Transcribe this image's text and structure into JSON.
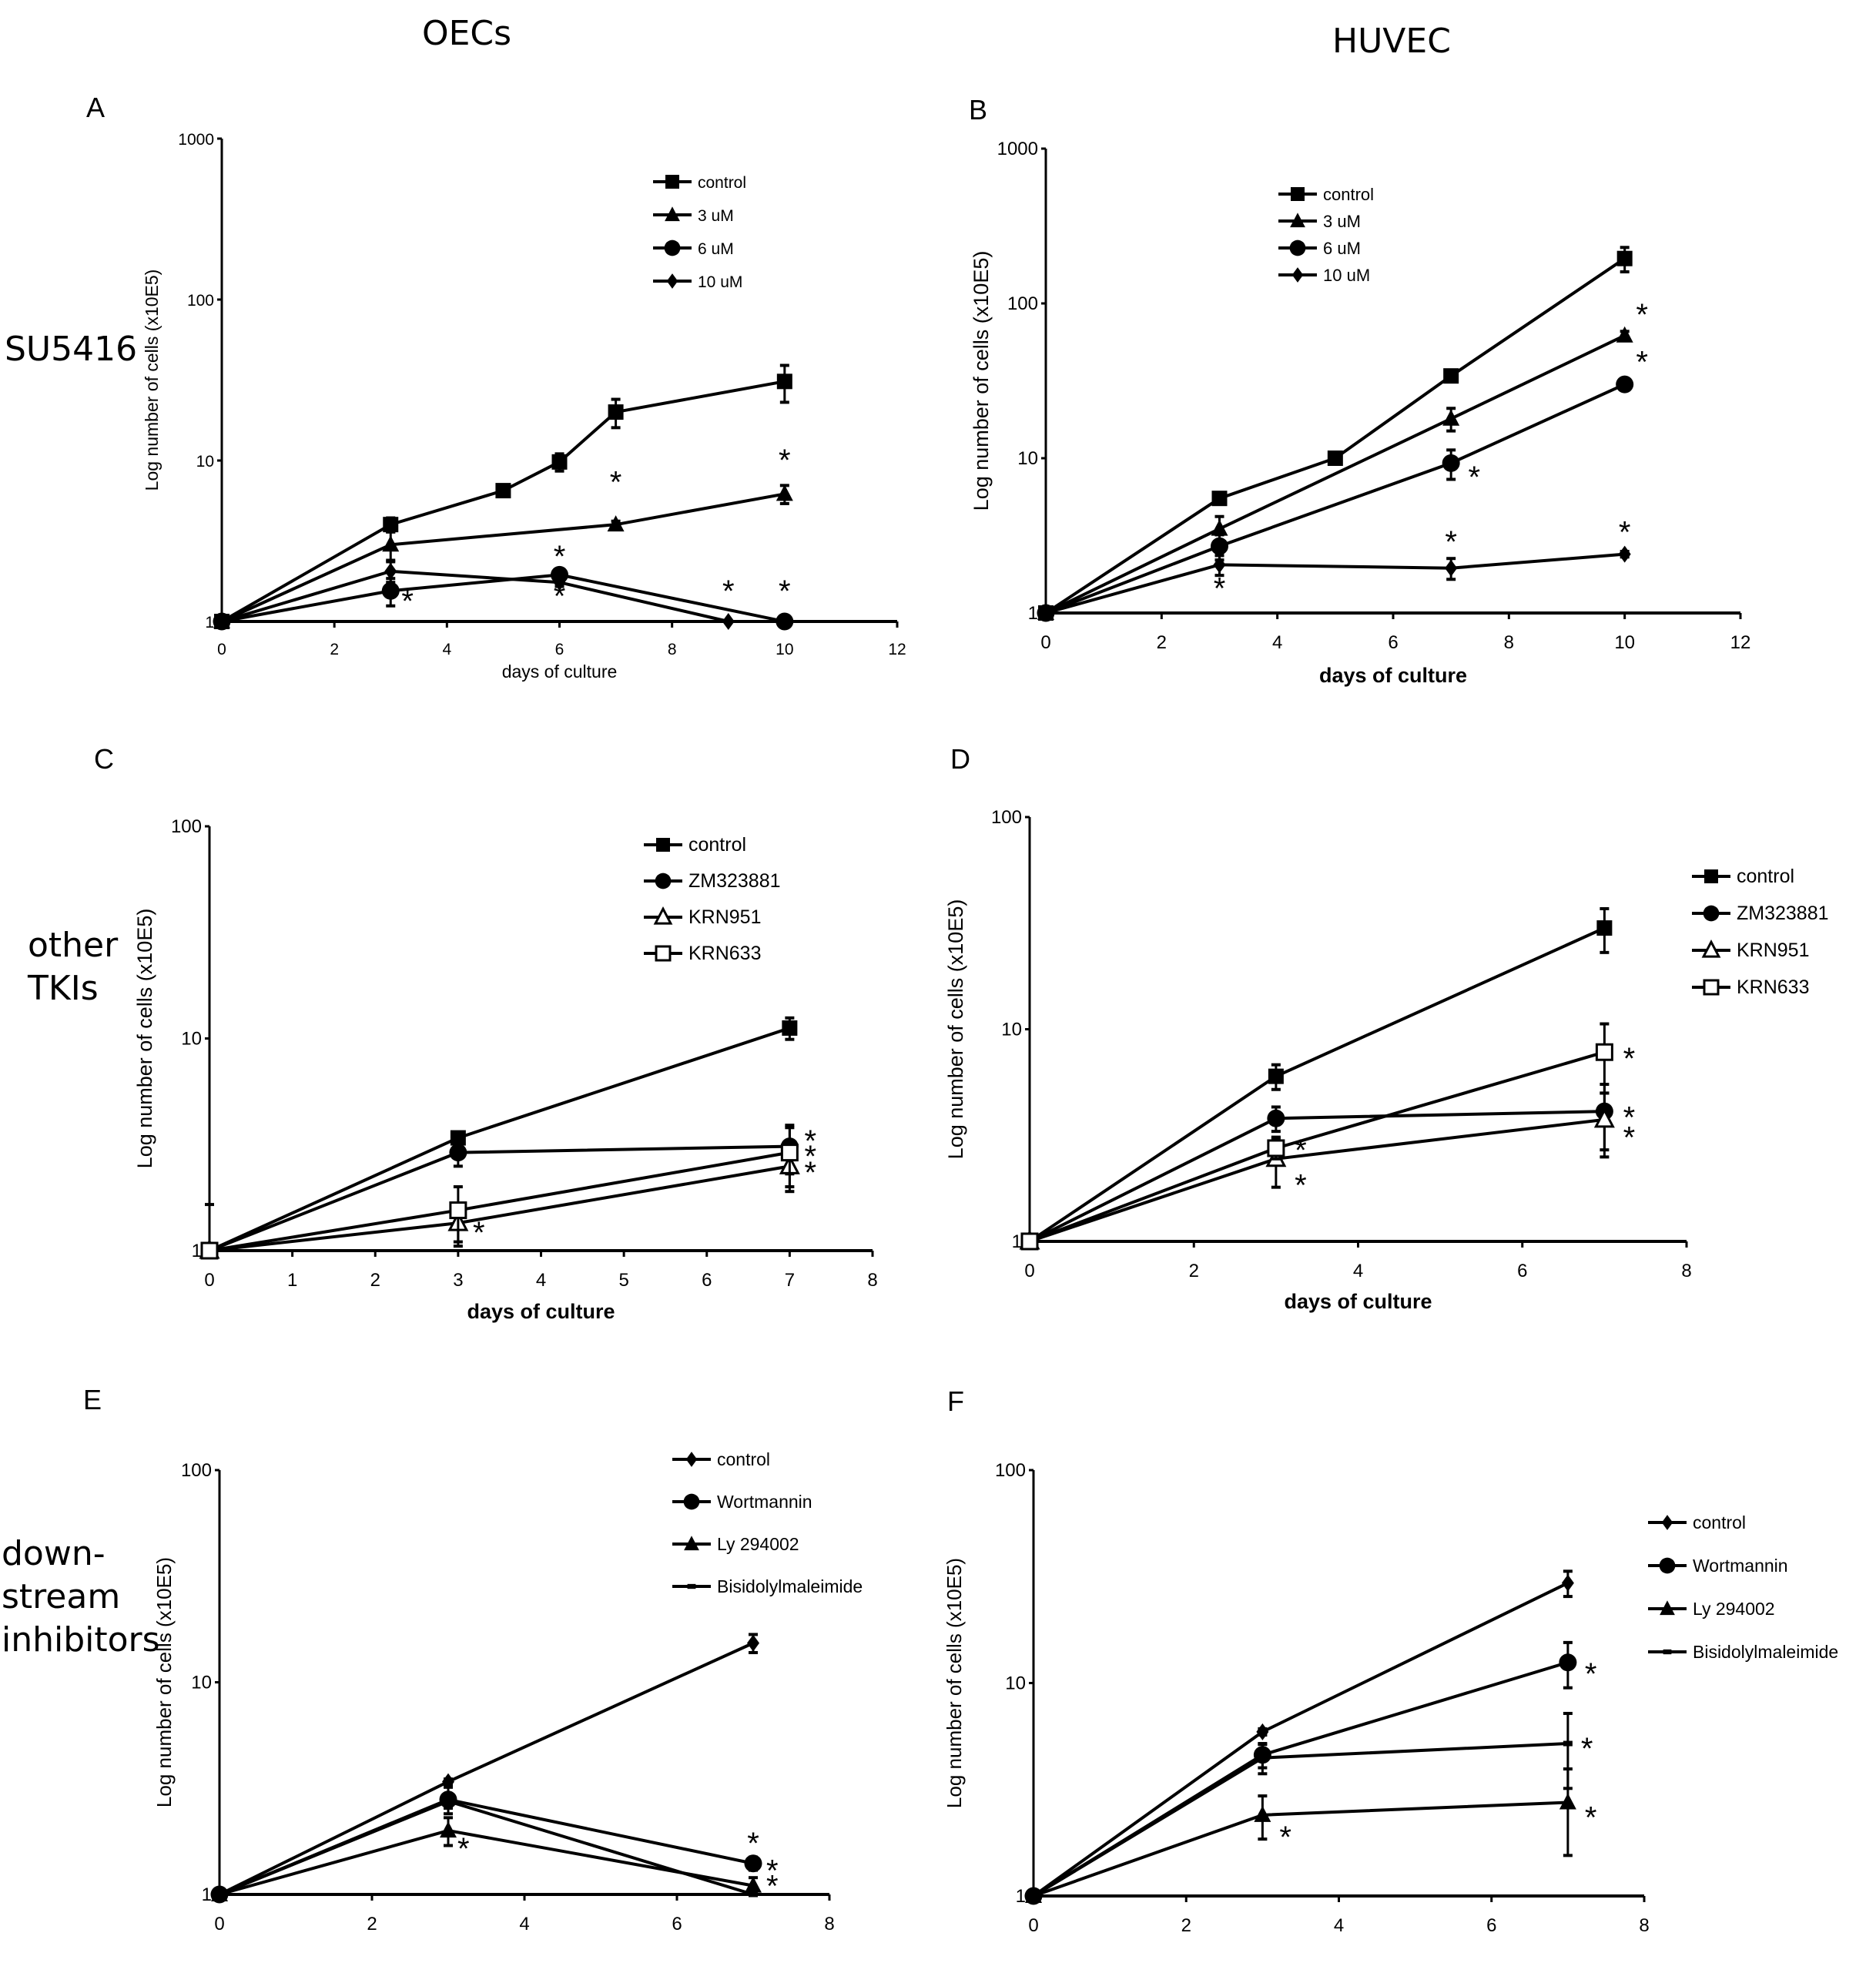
{
  "column_titles": [
    "OECs",
    "HUVEC"
  ],
  "row_titles": [
    "SU5416",
    "other\nTKIs",
    "down-\nstream\ninhibitors"
  ],
  "chart_data": [
    {
      "panel": "A",
      "type": "line",
      "yscale": "log",
      "xlabel": "days of culture",
      "ylabel": "Log number of cells (x10E5)",
      "xlim": [
        0,
        12
      ],
      "xticks": [
        0,
        2,
        4,
        6,
        8,
        10,
        12
      ],
      "ylim": [
        1,
        1000
      ],
      "yticks": [
        1,
        10,
        100,
        1000
      ],
      "legend": "top-right",
      "series": [
        {
          "name": "control",
          "marker": "square",
          "x": [
            0,
            3,
            5,
            6,
            7,
            10
          ],
          "y": [
            1,
            4,
            6.5,
            9.8,
            20,
            31
          ],
          "err": [
            0,
            0.4,
            0.3,
            1.2,
            4,
            8
          ]
        },
        {
          "name": "3 uM",
          "marker": "triangle",
          "x": [
            0,
            3,
            7,
            10
          ],
          "y": [
            1,
            3,
            4,
            6.2
          ],
          "err": [
            0,
            0.6,
            0.2,
            0.8
          ]
        },
        {
          "name": "6 uM",
          "marker": "circle",
          "x": [
            0,
            3,
            6,
            10
          ],
          "y": [
            1,
            1.55,
            1.95,
            1
          ],
          "err": [
            0,
            0.3,
            0.1,
            0
          ]
        },
        {
          "name": "10 uM",
          "marker": "diamond",
          "x": [
            0,
            3,
            6,
            9
          ],
          "y": [
            1,
            2.05,
            1.75,
            1
          ],
          "err": [
            0,
            0.3,
            0.1,
            0
          ]
        }
      ],
      "annotations": [
        {
          "text": "*",
          "x": 3.3,
          "y": 1.35
        },
        {
          "text": "*",
          "x": 6,
          "y": 2.55
        },
        {
          "text": "*",
          "x": 6,
          "y": 1.45
        },
        {
          "text": "*",
          "x": 7,
          "y": 7.4
        },
        {
          "text": "*",
          "x": 10,
          "y": 10.1
        },
        {
          "text": "*",
          "x": 9,
          "y": 1.55
        },
        {
          "text": "*",
          "x": 10,
          "y": 1.55
        }
      ]
    },
    {
      "panel": "B",
      "type": "line",
      "yscale": "log",
      "xlabel": "days of culture",
      "ylabel": "Log number of cells (x10E5)",
      "xlim": [
        0,
        12
      ],
      "xticks": [
        0,
        2,
        4,
        6,
        8,
        10,
        12
      ],
      "ylim": [
        1,
        1000
      ],
      "yticks": [
        1,
        10,
        100,
        1000
      ],
      "legend": "top-center",
      "series": [
        {
          "name": "control",
          "marker": "square",
          "x": [
            0,
            3,
            5,
            7,
            10
          ],
          "y": [
            1,
            5.5,
            10,
            34,
            195
          ],
          "err": [
            0,
            0.3,
            0.3,
            1.5,
            35
          ]
        },
        {
          "name": "3 uM",
          "marker": "triangle",
          "x": [
            0,
            3,
            7,
            10
          ],
          "y": [
            1,
            3.5,
            18,
            62
          ],
          "err": [
            0,
            0.7,
            3,
            4
          ]
        },
        {
          "name": "6 uM",
          "marker": "circle",
          "x": [
            0,
            3,
            7,
            10
          ],
          "y": [
            1,
            2.7,
            9.3,
            30
          ],
          "err": [
            0,
            0.5,
            2,
            1
          ]
        },
        {
          "name": "10 uM",
          "marker": "diamond",
          "x": [
            0,
            3,
            7,
            10
          ],
          "y": [
            1,
            2.05,
            1.95,
            2.4
          ],
          "err": [
            0,
            0.3,
            0.3,
            0.1
          ]
        }
      ],
      "annotations": [
        {
          "text": "*",
          "x": 3,
          "y": 1.45
        },
        {
          "text": "*",
          "x": 7,
          "y": 2.9
        },
        {
          "text": "*",
          "x": 10,
          "y": 3.35
        },
        {
          "text": "*",
          "x": 7.4,
          "y": 7.6
        },
        {
          "text": "*",
          "x": 10.3,
          "y": 85
        },
        {
          "text": "*",
          "x": 10.3,
          "y": 42
        }
      ]
    },
    {
      "panel": "C",
      "type": "line",
      "yscale": "log",
      "xlabel": "days of culture",
      "ylabel": "Log number of cells (x10E5)",
      "xlim": [
        0,
        8
      ],
      "xticks": [
        0,
        1,
        2,
        3,
        4,
        5,
        6,
        7,
        8
      ],
      "ylim": [
        1,
        100
      ],
      "yticks": [
        1,
        10,
        100
      ],
      "legend": "top-right",
      "series": [
        {
          "name": "control",
          "marker": "square",
          "x": [
            0,
            3,
            7
          ],
          "y": [
            1,
            3.4,
            11.2
          ],
          "err": [
            0.65,
            0.15,
            1.3
          ]
        },
        {
          "name": "ZM323881",
          "marker": "circle",
          "x": [
            0,
            3,
            7
          ],
          "y": [
            1,
            2.9,
            3.1
          ],
          "err": [
            0,
            0.4,
            0.8
          ]
        },
        {
          "name": "KRN951",
          "marker": "triangle-open",
          "x": [
            0,
            3,
            7
          ],
          "y": [
            1,
            1.35,
            2.5
          ],
          "err": [
            0,
            0.3,
            0.6
          ]
        },
        {
          "name": "KRN633",
          "marker": "square-open",
          "x": [
            0,
            3,
            7
          ],
          "y": [
            1,
            1.55,
            2.9
          ],
          "err": [
            0,
            0.45,
            0.9
          ]
        }
      ],
      "annotations": [
        {
          "text": "*",
          "x": 3.25,
          "y": 1.22
        },
        {
          "text": "*",
          "x": 7.25,
          "y": 3.3
        },
        {
          "text": "*",
          "x": 7.25,
          "y": 2.8
        },
        {
          "text": "*",
          "x": 7.25,
          "y": 2.35
        }
      ]
    },
    {
      "panel": "D",
      "type": "line",
      "yscale": "log",
      "xlabel": "days of culture",
      "ylabel": "Log number of cells (x10E5)",
      "xlim": [
        0,
        8
      ],
      "xticks": [
        0,
        2,
        4,
        6,
        8
      ],
      "ylim": [
        1,
        100
      ],
      "yticks": [
        1,
        10,
        100
      ],
      "legend": "right",
      "series": [
        {
          "name": "control",
          "marker": "square",
          "x": [
            0,
            3,
            7
          ],
          "y": [
            1,
            6,
            30
          ],
          "err": [
            0,
            0.8,
            7
          ]
        },
        {
          "name": "ZM323881",
          "marker": "circle",
          "x": [
            0,
            3,
            7
          ],
          "y": [
            1,
            3.8,
            4.1
          ],
          "err": [
            0,
            0.5,
            1.4
          ]
        },
        {
          "name": "KRN951",
          "marker": "triangle-open",
          "x": [
            0,
            3,
            7
          ],
          "y": [
            1,
            2.45,
            3.75
          ],
          "err": [
            0,
            0.65,
            1.25
          ]
        },
        {
          "name": "KRN633",
          "marker": "square-open",
          "x": [
            0,
            3,
            7
          ],
          "y": [
            1,
            2.75,
            7.8
          ],
          "err": [
            0,
            0.3,
            2.8
          ]
        }
      ],
      "annotations": [
        {
          "text": "*",
          "x": 3.3,
          "y": 2.7
        },
        {
          "text": "*",
          "x": 3.3,
          "y": 1.85
        },
        {
          "text": "*",
          "x": 7.3,
          "y": 7.3
        },
        {
          "text": "*",
          "x": 7.3,
          "y": 3.85
        },
        {
          "text": "*",
          "x": 7.3,
          "y": 3.1
        }
      ]
    },
    {
      "panel": "E",
      "type": "line",
      "yscale": "log",
      "xlabel": "",
      "ylabel": "Log number of cells (x10E5)",
      "xlim": [
        0,
        8
      ],
      "xticks": [
        0,
        2,
        4,
        6,
        8
      ],
      "ylim": [
        1,
        100
      ],
      "yticks": [
        1,
        10,
        100
      ],
      "legend": "top-right",
      "series": [
        {
          "name": "control",
          "marker": "diamond",
          "x": [
            0,
            3,
            7
          ],
          "y": [
            1,
            3.4,
            15.3
          ],
          "err": [
            0,
            0.1,
            1.5
          ]
        },
        {
          "name": "Wortmannin",
          "marker": "circle",
          "x": [
            0,
            3,
            7
          ],
          "y": [
            1,
            2.8,
            1.4
          ],
          "err": [
            0,
            0.4,
            0.1
          ]
        },
        {
          "name": "Ly 294002",
          "marker": "triangle",
          "x": [
            0,
            3,
            7
          ],
          "y": [
            1,
            2.0,
            1.1
          ],
          "err": [
            0,
            0.3,
            0.1
          ]
        },
        {
          "name": "Bisidolylmaleimide",
          "marker": "dash",
          "x": [
            0,
            3,
            7
          ],
          "y": [
            1,
            2.75,
            1.0
          ],
          "err": [
            0,
            0.2,
            0
          ]
        }
      ],
      "annotations": [
        {
          "text": "*",
          "x": 3.2,
          "y": 1.65
        },
        {
          "text": "*",
          "x": 7,
          "y": 1.75
        },
        {
          "text": "*",
          "x": 7.25,
          "y": 1.3
        },
        {
          "text": "*",
          "x": 7.25,
          "y": 1.1
        }
      ]
    },
    {
      "panel": "F",
      "type": "line",
      "yscale": "log",
      "xlabel": "",
      "ylabel": "Log number of cells (x10E5)",
      "xlim": [
        0,
        8
      ],
      "xticks": [
        0,
        2,
        4,
        6,
        8
      ],
      "ylim": [
        1,
        100
      ],
      "yticks": [
        1,
        10,
        100
      ],
      "legend": "right",
      "series": [
        {
          "name": "control",
          "marker": "diamond",
          "x": [
            0,
            3,
            7
          ],
          "y": [
            1,
            5.9,
            29.5
          ],
          "err": [
            0,
            0.2,
            4
          ]
        },
        {
          "name": "Wortmannin",
          "marker": "circle",
          "x": [
            0,
            3,
            7
          ],
          "y": [
            1,
            4.6,
            12.5
          ],
          "err": [
            0,
            0.6,
            3
          ]
        },
        {
          "name": "Ly 294002",
          "marker": "triangle",
          "x": [
            0,
            3,
            7
          ],
          "y": [
            1,
            2.4,
            2.75
          ],
          "err": [
            0,
            0.55,
            1.2
          ]
        },
        {
          "name": "Bisidolylmaleimide",
          "marker": "dash",
          "x": [
            0,
            3,
            7
          ],
          "y": [
            1,
            4.45,
            5.2
          ],
          "err": [
            0,
            0.7,
            2
          ]
        }
      ],
      "annotations": [
        {
          "text": "*",
          "x": 3.3,
          "y": 1.9
        },
        {
          "text": "*",
          "x": 7.3,
          "y": 11.1
        },
        {
          "text": "*",
          "x": 7.25,
          "y": 4.95
        },
        {
          "text": "*",
          "x": 7.3,
          "y": 2.35
        }
      ]
    }
  ]
}
